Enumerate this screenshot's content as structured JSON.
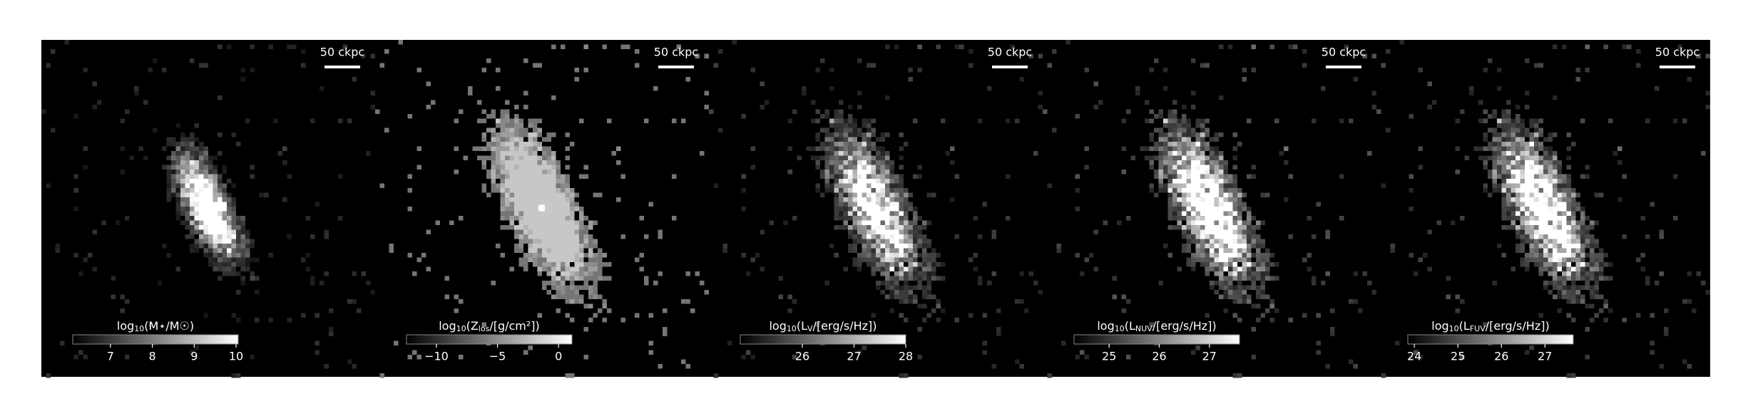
{
  "chart_data": [
    {
      "type": "image",
      "scalebar": "50 ckpc",
      "label": [
        "log",
        "10",
        "(M⋆/M☉)"
      ],
      "cmap": "gray",
      "clim": [
        6.1,
        10.05
      ],
      "ticks": [
        7,
        8,
        9,
        10
      ],
      "brightness": 0.45,
      "spread": 0.7
    },
    {
      "type": "image",
      "scalebar": "50 ckpc",
      "label": [
        "log",
        "10",
        "(Z",
        "los",
        "/[g/cm²])"
      ],
      "cmap": "gray",
      "clim": [
        -12.45,
        1.1
      ],
      "ticks": [
        {
          "value": -10,
          "label": "−10"
        },
        {
          "value": -5,
          "label": "−5"
        },
        0
      ],
      "brightness": 0.55,
      "spread": 1.0
    },
    {
      "type": "image",
      "scalebar": "50 ckpc",
      "label": [
        "log",
        "10",
        "(L",
        "V",
        "/[erg/s/Hz])"
      ],
      "cmap": "gray",
      "clim": [
        24.8,
        28
      ],
      "ticks": [
        26,
        27,
        28
      ],
      "brightness": 0.6,
      "spread": 1.0
    },
    {
      "type": "image",
      "scalebar": "50 ckpc",
      "label": [
        "log",
        "10",
        "(L",
        "NUV",
        "/[erg/s/Hz])"
      ],
      "cmap": "gray",
      "clim": [
        24.3,
        27.6
      ],
      "ticks": [
        25,
        26,
        27
      ],
      "brightness": 0.75,
      "spread": 1.0
    },
    {
      "type": "image",
      "scalebar": "50 ckpc",
      "label": [
        "log",
        "10",
        "(L",
        "FUV",
        "/[erg/s/Hz])"
      ],
      "cmap": "gray",
      "clim": [
        23.85,
        27.65
      ],
      "ticks": [
        24,
        25,
        26,
        27
      ],
      "brightness": 0.7,
      "spread": 1.0
    }
  ]
}
